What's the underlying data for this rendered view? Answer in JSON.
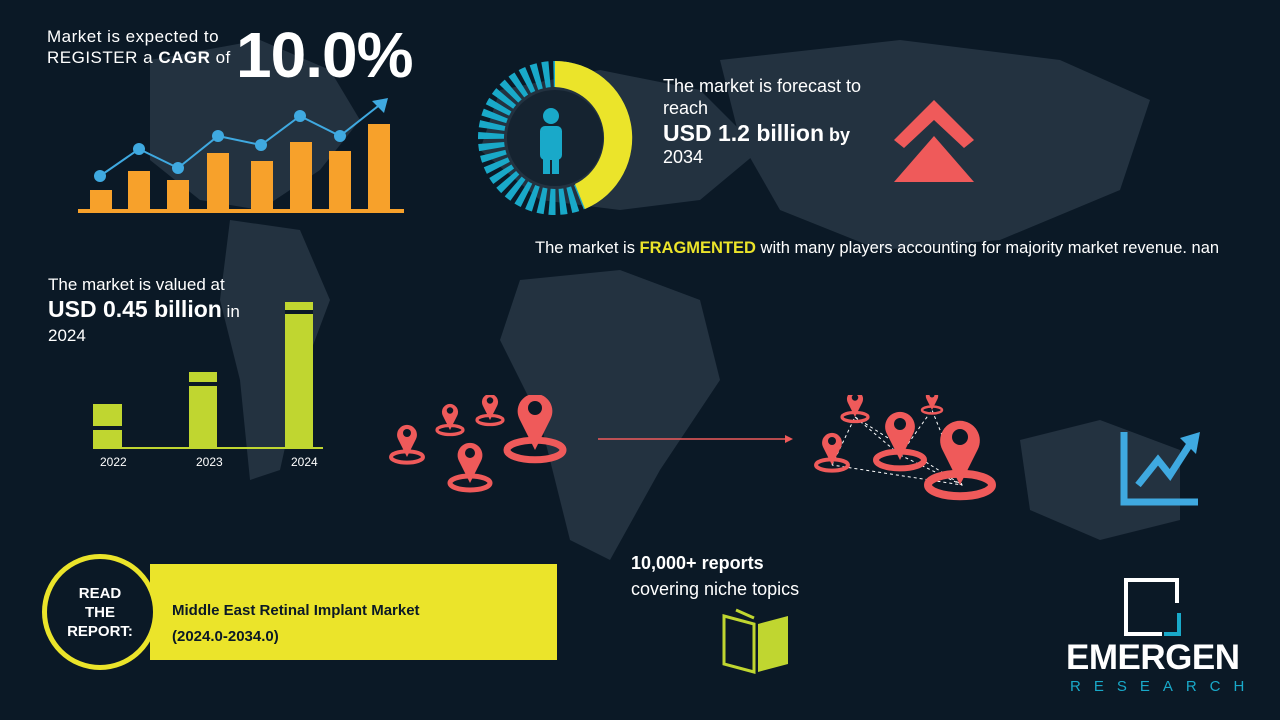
{
  "cagr": {
    "line1": "Market is expected to",
    "line2_pre": "REGISTER a ",
    "line2_bold": "CAGR",
    "line2_post": " of",
    "value": "10.0%"
  },
  "forecast": {
    "line1": "The market is forecast to",
    "line2": "reach",
    "value": "USD 1.2 billion",
    "by": " by",
    "year": "2034"
  },
  "fragmented": {
    "pre": "The market is ",
    "highlight": "FRAGMENTED",
    "post": " with many players accounting for majority market revenue. nan"
  },
  "valued": {
    "line1": "The market is valued at",
    "value": "USD 0.45 billion",
    "in": " in",
    "year": "2024"
  },
  "chart_data": {
    "type": "bar",
    "categories": [
      "2022",
      "2023",
      "2024"
    ],
    "color": "#c0d630"
  },
  "reports": {
    "line1": "10,000+ reports",
    "line2": "covering niche topics"
  },
  "read_report": {
    "label_lines": [
      "READ",
      "THE",
      "REPORT:"
    ],
    "title": "Middle East Retinal Implant Market (2024.0-2034.0)"
  },
  "logo": {
    "name": "EMERGEN",
    "sub": "RESEARCH"
  },
  "colors": {
    "background": "#0b1926",
    "yellow": "#ebe42a",
    "orange": "#f7a12b",
    "blue": "#3fa9e0",
    "red": "#ef5a5a",
    "lime": "#c0d630",
    "cyan": "#19a9c9"
  },
  "icons": [
    "growth-chart-icon",
    "donut-person-icon",
    "double-chevron-up-icon",
    "location-pins-icon",
    "trend-up-icon",
    "open-book-icon"
  ]
}
